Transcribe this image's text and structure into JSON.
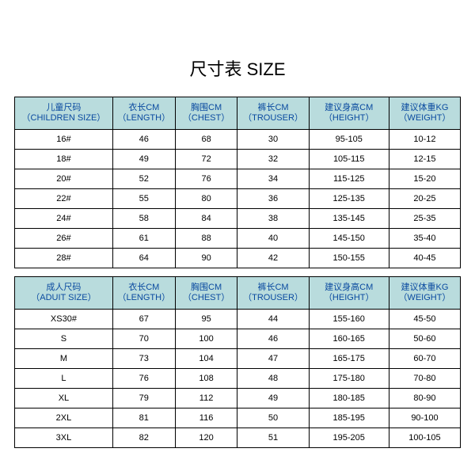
{
  "title": "尺寸表 SIZE",
  "style": {
    "header_bg": "#b9dcdd",
    "header_color": "#0a4aa0",
    "border_color": "#000000",
    "cell_bg": "#ffffff",
    "title_fontsize": 22,
    "header_fontsize": 11,
    "cell_fontsize": 11
  },
  "children": {
    "headers": [
      {
        "cn": "儿童尺码",
        "en": "（CHILDREN SIZE）"
      },
      {
        "cn": "衣长CM",
        "en": "（LENGTH）"
      },
      {
        "cn": "胸围CM",
        "en": "（CHEST）"
      },
      {
        "cn": "裤长CM",
        "en": "（TROUSER）"
      },
      {
        "cn": "建议身高CM",
        "en": "（HEIGHT）"
      },
      {
        "cn": "建议体重KG",
        "en": "（WEIGHT）"
      }
    ],
    "rows": [
      [
        "16#",
        "46",
        "68",
        "30",
        "95-105",
        "10-12"
      ],
      [
        "18#",
        "49",
        "72",
        "32",
        "105-115",
        "12-15"
      ],
      [
        "20#",
        "52",
        "76",
        "34",
        "115-125",
        "15-20"
      ],
      [
        "22#",
        "55",
        "80",
        "36",
        "125-135",
        "20-25"
      ],
      [
        "24#",
        "58",
        "84",
        "38",
        "135-145",
        "25-35"
      ],
      [
        "26#",
        "61",
        "88",
        "40",
        "145-150",
        "35-40"
      ],
      [
        "28#",
        "64",
        "90",
        "42",
        "150-155",
        "40-45"
      ]
    ]
  },
  "adult": {
    "headers": [
      {
        "cn": "成人尺码",
        "en": "（ADUIT SIZE）"
      },
      {
        "cn": "衣长CM",
        "en": "（LENGTH）"
      },
      {
        "cn": "胸围CM",
        "en": "（CHEST）"
      },
      {
        "cn": "裤长CM",
        "en": "（TROUSER）"
      },
      {
        "cn": "建议身高CM",
        "en": "（HEIGHT）"
      },
      {
        "cn": "建议体重KG",
        "en": "（WEIGHT）"
      }
    ],
    "rows": [
      [
        "XS30#",
        "67",
        "95",
        "44",
        "155-160",
        "45-50"
      ],
      [
        "S",
        "70",
        "100",
        "46",
        "160-165",
        "50-60"
      ],
      [
        "M",
        "73",
        "104",
        "47",
        "165-175",
        "60-70"
      ],
      [
        "L",
        "76",
        "108",
        "48",
        "175-180",
        "70-80"
      ],
      [
        "XL",
        "79",
        "112",
        "49",
        "180-185",
        "80-90"
      ],
      [
        "2XL",
        "81",
        "116",
        "50",
        "185-195",
        "90-100"
      ],
      [
        "3XL",
        "82",
        "120",
        "51",
        "195-205",
        "100-105"
      ]
    ]
  }
}
